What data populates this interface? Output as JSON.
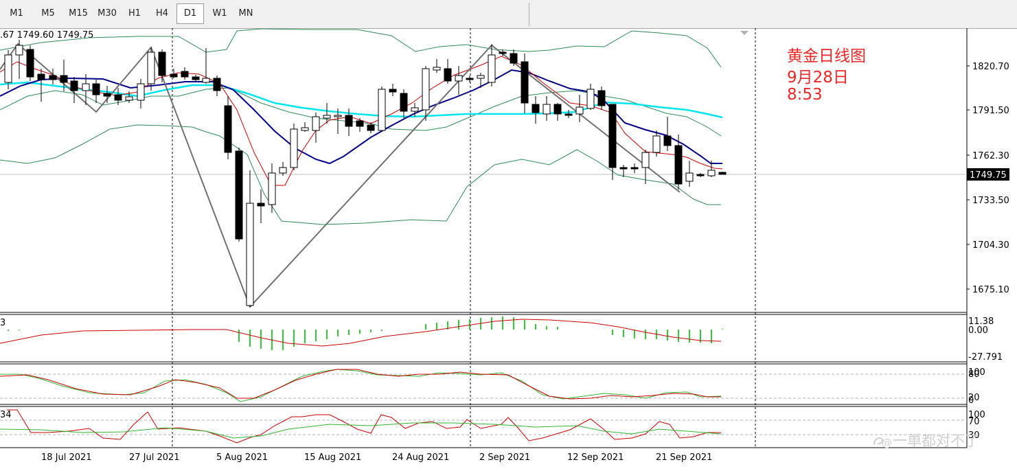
{
  "toolbar": {
    "timeframes": [
      "M1",
      "M5",
      "M15",
      "M30",
      "H1",
      "H4",
      "D1",
      "W1",
      "MN"
    ],
    "active": "D1"
  },
  "chart": {
    "ohlc_label": ".67 1749.60 1749.75",
    "current_price": "1749.75",
    "price_ticks": [
      "1820.70",
      "1791.50",
      "1762.30",
      "1733.50",
      "1704.30",
      "1675.10"
    ],
    "date_ticks": [
      "18 Jul 2021",
      "27 Jul 2021",
      "5 Aug 2021",
      "15 Aug 2021",
      "24 Aug 2021",
      "2 Sep 2021",
      "12 Sep 2021",
      "21 Sep 2021"
    ],
    "macd": {
      "label": "3",
      "ticks": [
        "11.38",
        "0.00",
        "-27.791"
      ]
    },
    "stoch": {
      "ticks": [
        "100",
        "80",
        "20",
        "0"
      ]
    },
    "rsi": {
      "label": "34",
      "ticks": [
        "100",
        "70",
        "30"
      ]
    },
    "colors": {
      "up": "#ffffff",
      "down": "#000000",
      "ma_fast": "#cc0000",
      "ma_mid": "#00008b",
      "ma_slow": "#00e5ee",
      "bollinger": "#2e8b57",
      "zigzag": "#707070",
      "hist": "#32cd32",
      "signal": "#cc0000"
    }
  },
  "annotation": {
    "line1": "黄金日线图",
    "line2": "9月28日",
    "line3": "8:53"
  },
  "watermark": {
    "text": "一单都对不了"
  }
}
